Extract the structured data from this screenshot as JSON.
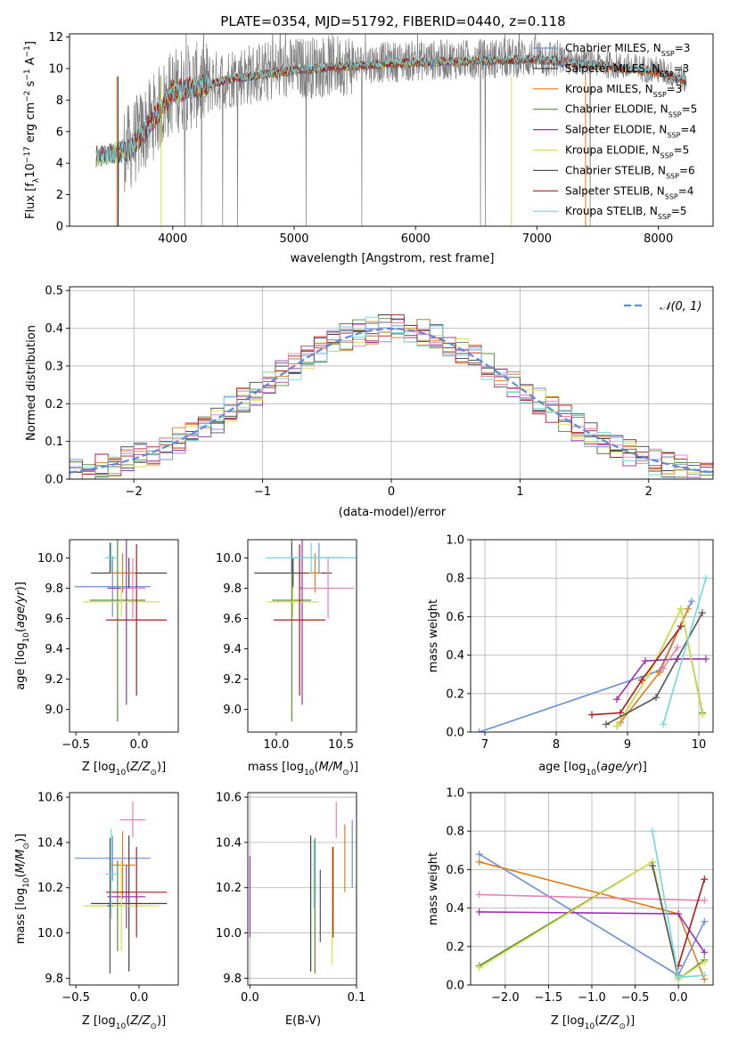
{
  "figure": {
    "title": "PLATE=0354, MJD=51792, FIBERID=0440, z=0.118"
  },
  "colors": {
    "Chabrier MILES": "#6a8fd8",
    "Salpeter MILES": "#404040",
    "Kroupa MILES": "#e07b1a",
    "Chabrier ELODIE": "#5a8a3a",
    "Salpeter ELODIE": "#9b30b0",
    "Kroupa ELODIE": "#d4e04a",
    "Chabrier STELIB": "#555555",
    "Salpeter STELIB": "#b01818",
    "Kroupa STELIB": "#6fd8dc",
    "pink": "#e77fb0",
    "data": "#7f7f7f"
  },
  "chart_data": [
    {
      "id": "spectrum",
      "type": "line",
      "xlabel": "wavelength [Angstrom, rest frame]",
      "ylabel": "Flux [f_λ 10^-17 erg cm^-2 s^-1 A^-1]",
      "xlim": [
        3150,
        8450
      ],
      "ylim": [
        0,
        12.2
      ],
      "xticks": [
        4000,
        5000,
        6000,
        7000,
        8000
      ],
      "yticks": [
        0,
        2,
        4,
        6,
        8,
        10,
        12
      ],
      "grid": false,
      "legend_position": "top-right",
      "legend": [
        {
          "name": "Chabrier MILES",
          "label": "Chabrier MILES, N",
          "sub": "SSP",
          "tail": "=3"
        },
        {
          "name": "Salpeter MILES",
          "label": "Salpeter MILES, N",
          "sub": "SSP",
          "tail": "=3"
        },
        {
          "name": "Kroupa MILES",
          "label": "Kroupa MILES, N",
          "sub": "SSP",
          "tail": "=3"
        },
        {
          "name": "Chabrier ELODIE",
          "label": "Chabrier ELODIE, N",
          "sub": "SSP",
          "tail": "=5"
        },
        {
          "name": "Salpeter ELODIE",
          "label": "Salpeter ELODIE, N",
          "sub": "SSP",
          "tail": "=4"
        },
        {
          "name": "Kroupa ELODIE",
          "label": "Kroupa ELODIE, N",
          "sub": "SSP",
          "tail": "=5"
        },
        {
          "name": "Chabrier STELIB",
          "label": "Chabrier STELIB, N",
          "sub": "SSP",
          "tail": "=6"
        },
        {
          "name": "Salpeter STELIB",
          "label": "Salpeter STELIB, N",
          "sub": "SSP",
          "tail": "=4"
        },
        {
          "name": "Kroupa STELIB",
          "label": "Kroupa STELIB, N",
          "sub": "SSP",
          "tail": "=5"
        }
      ],
      "continuum": {
        "wavelength": [
          3370,
          3500,
          3650,
          3800,
          4000,
          4250,
          4500,
          5000,
          5500,
          6000,
          6500,
          7000,
          7500,
          8000,
          8230
        ],
        "flux": [
          4.5,
          4.7,
          5.0,
          6.5,
          8.6,
          9.0,
          9.5,
          10.0,
          10.3,
          10.5,
          10.6,
          10.7,
          10.3,
          9.9,
          9.3
        ]
      }
    },
    {
      "id": "residuals",
      "type": "histogram",
      "xlabel": "(data-model)/error",
      "ylabel": "Normed distribution",
      "xlim": [
        -2.5,
        2.5
      ],
      "ylim": [
        0,
        0.51
      ],
      "xticks": [
        -2,
        -1,
        0,
        1,
        2
      ],
      "yticks": [
        0.0,
        0.1,
        0.2,
        0.3,
        0.4,
        0.5
      ],
      "grid": true,
      "legend_position": "top-right",
      "reference_curve": {
        "name": "𝒩(0, 1)",
        "mu": 0,
        "sigma": 1
      },
      "bin_width": 0.1
    },
    {
      "id": "age_vs_Z",
      "type": "errorbar",
      "xlabel": "Z [log10(Z/Z⊙)]",
      "ylabel": "age [log10(age/yr)]",
      "xlim": [
        -0.55,
        0.31
      ],
      "ylim": [
        8.85,
        10.12
      ],
      "xticks": [
        -0.5,
        0.0
      ],
      "yticks": [
        9.0,
        9.2,
        9.4,
        9.6,
        9.8,
        10.0
      ],
      "points": [
        {
          "series": "Chabrier MILES",
          "x": -0.21,
          "xerr": 0.3,
          "y": 9.81,
          "yerr": 0.2
        },
        {
          "series": "Salpeter MILES",
          "x": -0.08,
          "xerr": 0.3,
          "y": 9.9,
          "yerr": 0.1
        },
        {
          "series": "Kroupa MILES",
          "x": -0.13,
          "xerr": 0.1,
          "y": 9.9,
          "yerr": 0.13
        },
        {
          "series": "Chabrier ELODIE",
          "x": -0.17,
          "xerr": 0.22,
          "y": 9.72,
          "yerr": 0.8
        },
        {
          "series": "Salpeter ELODIE",
          "x": -0.1,
          "xerr": 0.15,
          "y": 9.8,
          "yerr": 0.77
        },
        {
          "series": "Kroupa ELODIE",
          "x": -0.14,
          "xerr": 0.3,
          "y": 9.71,
          "yerr": 0.1
        },
        {
          "series": "Chabrier STELIB",
          "x": -0.23,
          "xerr": 0.02,
          "y": 10.0,
          "yerr": 0.1
        },
        {
          "series": "Salpeter STELIB",
          "x": -0.02,
          "xerr": 0.24,
          "y": 9.59,
          "yerr": 0.5
        },
        {
          "series": "Kroupa STELIB",
          "x": -0.22,
          "xerr": 0.05,
          "y": 10.0,
          "yerr": 0.1
        },
        {
          "series": "pink",
          "x": -0.05,
          "xerr": 0.1,
          "y": 9.8,
          "yerr": 0.2
        }
      ]
    },
    {
      "id": "age_vs_mass",
      "type": "errorbar",
      "xlabel": "mass [log10(M/M⊙)]",
      "xlim": [
        9.78,
        10.62
      ],
      "ylim": [
        8.85,
        10.12
      ],
      "xticks": [
        10.0,
        10.5
      ],
      "yticks": [
        9.0,
        9.2,
        9.4,
        9.6,
        9.8,
        10.0
      ],
      "points": [
        {
          "series": "Chabrier MILES",
          "x": 10.33,
          "xerr": 0.2,
          "y": 10.0,
          "yerr": 0.1
        },
        {
          "series": "Salpeter MILES",
          "x": 10.13,
          "xerr": 0.3,
          "y": 9.9,
          "yerr": 0.1
        },
        {
          "series": "Kroupa MILES",
          "x": 10.3,
          "xerr": 0.05,
          "y": 9.9,
          "yerr": 0.13
        },
        {
          "series": "Chabrier ELODIE",
          "x": 10.12,
          "xerr": 0.15,
          "y": 9.72,
          "yerr": 0.8
        },
        {
          "series": "Salpeter ELODIE",
          "x": 10.2,
          "xerr": 0.02,
          "y": 9.8,
          "yerr": 0.77
        },
        {
          "series": "Kroupa ELODIE",
          "x": 10.13,
          "xerr": 0.2,
          "y": 9.71,
          "yerr": 0.1
        },
        {
          "series": "Chabrier STELIB",
          "x": 10.12,
          "xerr": 0.02,
          "y": 10.0,
          "yerr": 0.1
        },
        {
          "series": "Salpeter STELIB",
          "x": 10.18,
          "xerr": 0.2,
          "y": 9.59,
          "yerr": 0.5
        },
        {
          "series": "Kroupa STELIB",
          "x": 10.27,
          "xerr": 0.35,
          "y": 10.0,
          "yerr": 0.1
        },
        {
          "series": "pink",
          "x": 10.4,
          "xerr": 0.2,
          "y": 9.8,
          "yerr": 0.2
        }
      ]
    },
    {
      "id": "weight_vs_age",
      "type": "line",
      "xlabel": "age [log10(age/yr)]",
      "ylabel": "mass weight",
      "xlim": [
        6.8,
        10.2
      ],
      "ylim": [
        0,
        1.0
      ],
      "xticks": [
        7,
        8,
        9,
        10
      ],
      "yticks": [
        0.0,
        0.2,
        0.4,
        0.6,
        0.8,
        1.0
      ],
      "grid": true,
      "series": [
        {
          "name": "Chabrier MILES",
          "x": [
            6.92,
            9.45,
            9.9
          ],
          "y": [
            0.0,
            0.32,
            0.68
          ]
        },
        {
          "name": "Kroupa MILES",
          "x": [
            8.9,
            9.45,
            9.85
          ],
          "y": [
            0.05,
            0.31,
            0.64
          ]
        },
        {
          "name": "Chabrier ELODIE",
          "x": [
            8.85,
            9.3,
            9.75,
            10.05
          ],
          "y": [
            0.03,
            0.3,
            0.64,
            0.1
          ]
        },
        {
          "name": "Salpeter ELODIE",
          "x": [
            8.85,
            9.25,
            9.7,
            10.1
          ],
          "y": [
            0.17,
            0.37,
            0.38,
            0.38
          ]
        },
        {
          "name": "Kroupa ELODIE",
          "x": [
            8.85,
            9.3,
            9.75,
            10.05
          ],
          "y": [
            0.03,
            0.3,
            0.64,
            0.09
          ]
        },
        {
          "name": "Chabrier STELIB",
          "x": [
            8.7,
            9.4,
            10.05
          ],
          "y": [
            0.04,
            0.18,
            0.62
          ]
        },
        {
          "name": "Salpeter STELIB",
          "x": [
            8.5,
            8.9,
            9.2,
            9.75
          ],
          "y": [
            0.09,
            0.1,
            0.27,
            0.55
          ]
        },
        {
          "name": "Kroupa STELIB",
          "x": [
            9.5,
            10.1
          ],
          "y": [
            0.04,
            0.8
          ]
        },
        {
          "name": "pink",
          "x": [
            9.5,
            9.7
          ],
          "y": [
            0.33,
            0.44
          ]
        }
      ]
    },
    {
      "id": "mass_vs_Z",
      "type": "errorbar",
      "xlabel": "Z [log10(Z/Z⊙)]",
      "ylabel": "mass [log10(M/M⊙)]",
      "xlim": [
        -0.55,
        0.31
      ],
      "ylim": [
        9.77,
        10.62
      ],
      "xticks": [
        -0.5,
        0.0
      ],
      "yticks": [
        9.8,
        10.0,
        10.2,
        10.4,
        10.6
      ],
      "points": [
        {
          "series": "Chabrier MILES",
          "x": -0.21,
          "xerr": 0.3,
          "y": 10.33,
          "yerr": 0.1
        },
        {
          "series": "Salpeter MILES",
          "x": -0.08,
          "xerr": 0.3,
          "y": 10.13,
          "yerr": 0.3
        },
        {
          "series": "Kroupa MILES",
          "x": -0.13,
          "xerr": 0.1,
          "y": 10.3,
          "yerr": 0.15
        },
        {
          "series": "Chabrier ELODIE",
          "x": -0.17,
          "xerr": 0.22,
          "y": 10.12,
          "yerr": 0.2
        },
        {
          "series": "Salpeter ELODIE",
          "x": -0.1,
          "xerr": 0.15,
          "y": 10.16,
          "yerr": 0.14
        },
        {
          "series": "Kroupa ELODIE",
          "x": -0.14,
          "xerr": 0.3,
          "y": 10.12,
          "yerr": 0.2
        },
        {
          "series": "Chabrier STELIB",
          "x": -0.23,
          "xerr": 0.02,
          "y": 10.12,
          "yerr": 0.3
        },
        {
          "series": "Salpeter STELIB",
          "x": -0.02,
          "xerr": 0.24,
          "y": 10.18,
          "yerr": 0.2
        },
        {
          "series": "Kroupa STELIB",
          "x": -0.22,
          "xerr": 0.05,
          "y": 10.26,
          "yerr": 0.2
        },
        {
          "series": "pink",
          "x": -0.05,
          "xerr": 0.1,
          "y": 10.5,
          "yerr": 0.08
        }
      ]
    },
    {
      "id": "mass_vs_ebv",
      "type": "errorbar",
      "xlabel": "E(B-V)",
      "xlim": [
        -0.002,
        0.1
      ],
      "ylim": [
        9.77,
        10.62
      ],
      "xticks": [
        0.0,
        0.1
      ],
      "yticks": [
        9.8,
        10.0,
        10.2,
        10.4,
        10.6
      ],
      "grid": true,
      "points": [
        {
          "series": "Chabrier MILES",
          "x": 0.096,
          "y": 10.35,
          "yerr": 0.15
        },
        {
          "series": "Salpeter MILES",
          "x": 0.057,
          "y": 10.13,
          "yerr": 0.3
        },
        {
          "series": "Kroupa MILES",
          "x": 0.089,
          "y": 10.33,
          "yerr": 0.15
        },
        {
          "series": "Chabrier ELODIE",
          "x": 0.061,
          "y": 10.12,
          "yerr": 0.3
        },
        {
          "series": "Salpeter ELODIE",
          "x": 0.0,
          "y": 10.16,
          "yerr": 0.18
        },
        {
          "series": "Kroupa ELODIE",
          "x": 0.077,
          "y": 10.12,
          "yerr": 0.26
        },
        {
          "series": "Chabrier STELIB",
          "x": 0.066,
          "y": 10.12,
          "yerr": 0.16
        },
        {
          "series": "Salpeter STELIB",
          "x": 0.078,
          "y": 10.18,
          "yerr": 0.2
        },
        {
          "series": "Kroupa STELIB",
          "x": 0.06,
          "y": 10.26,
          "yerr": 0.15
        },
        {
          "series": "pink",
          "x": 0.081,
          "y": 10.5,
          "yerr": 0.08
        }
      ]
    },
    {
      "id": "weight_vs_Z",
      "type": "line",
      "xlabel": "Z [log10(Z/Z⊙)]",
      "ylabel": "mass weight",
      "xlim": [
        -2.4,
        0.4
      ],
      "ylim": [
        0,
        1.0
      ],
      "xticks": [
        -2.0,
        -1.5,
        -1.0,
        -0.5,
        0.0
      ],
      "yticks": [
        0.0,
        0.2,
        0.4,
        0.6,
        0.8,
        1.0
      ],
      "grid": true,
      "series": [
        {
          "name": "Chabrier MILES",
          "x": [
            -2.3,
            0.0,
            0.3
          ],
          "y": [
            0.68,
            0.05,
            0.33
          ]
        },
        {
          "name": "Kroupa MILES",
          "x": [
            -2.3,
            0.0,
            0.3
          ],
          "y": [
            0.64,
            0.37,
            0.03
          ]
        },
        {
          "name": "pink",
          "x": [
            -2.3,
            0.3
          ],
          "y": [
            0.47,
            0.44
          ]
        },
        {
          "name": "Salpeter ELODIE",
          "x": [
            -2.3,
            0.0,
            0.3
          ],
          "y": [
            0.38,
            0.37,
            0.17
          ]
        },
        {
          "name": "Chabrier ELODIE",
          "x": [
            -2.3,
            -0.3,
            0.0,
            0.3
          ],
          "y": [
            0.1,
            0.64,
            0.03,
            0.13
          ]
        },
        {
          "name": "Kroupa ELODIE",
          "x": [
            -2.3,
            -0.3,
            0.0,
            0.3
          ],
          "y": [
            0.09,
            0.64,
            0.03,
            0.12
          ]
        },
        {
          "name": "Salpeter STELIB",
          "x": [
            0.0,
            0.3
          ],
          "y": [
            0.1,
            0.55
          ]
        },
        {
          "name": "Chabrier STELIB",
          "x": [
            -0.3,
            0.0
          ],
          "y": [
            0.62,
            0.04
          ]
        },
        {
          "name": "Kroupa STELIB",
          "x": [
            -0.3,
            0.0,
            0.3
          ],
          "y": [
            0.8,
            0.04,
            0.05
          ]
        }
      ]
    }
  ]
}
